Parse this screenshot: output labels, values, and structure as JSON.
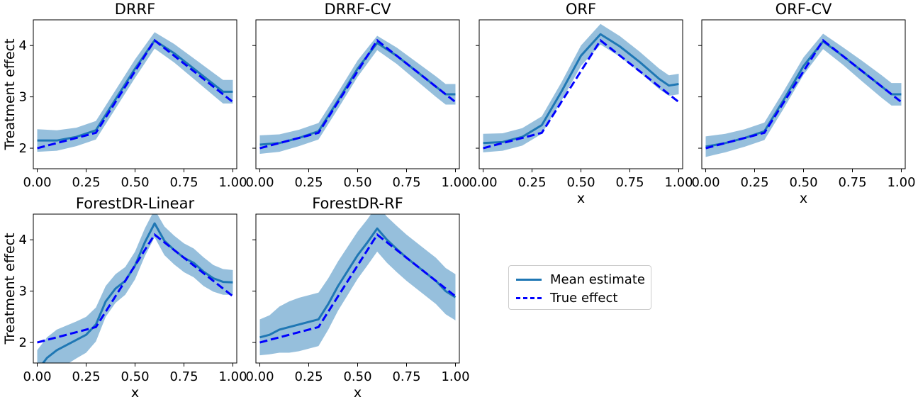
{
  "chart_data": {
    "type": "line",
    "x_ticks": [
      "0.00",
      "0.25",
      "0.50",
      "0.75",
      "1.00"
    ],
    "y_ticks": [
      "2",
      "3",
      "4"
    ],
    "xlim": [
      -0.02,
      1.02
    ],
    "ylim": [
      1.6,
      4.5
    ],
    "legend": {
      "placement": "center-right of lower row",
      "entries": [
        {
          "label": "Mean estimate",
          "style": "solid",
          "color": "#1f77b4"
        },
        {
          "label": "True effect",
          "style": "dashed",
          "color": "#0000ff"
        }
      ]
    },
    "true_effect": {
      "x": [
        0.0,
        0.3,
        0.6,
        1.0
      ],
      "y": [
        2.0,
        2.3,
        4.1,
        2.9
      ]
    },
    "panels": [
      {
        "title": "DRRF",
        "ylabel": "Treatment effect",
        "xlabel": "",
        "mean": {
          "x": [
            0.0,
            0.1,
            0.2,
            0.3,
            0.4,
            0.5,
            0.6,
            0.7,
            0.8,
            0.9,
            0.95,
            1.0
          ],
          "y": [
            2.15,
            2.15,
            2.22,
            2.35,
            2.95,
            3.55,
            4.1,
            3.85,
            3.55,
            3.25,
            3.1,
            3.1
          ]
        },
        "band_halfwidth": [
          0.22,
          0.2,
          0.18,
          0.18,
          0.18,
          0.18,
          0.16,
          0.18,
          0.2,
          0.22,
          0.23,
          0.23
        ]
      },
      {
        "title": "DRRF-CV",
        "ylabel": "",
        "xlabel": "",
        "mean": {
          "x": [
            0.0,
            0.1,
            0.2,
            0.3,
            0.4,
            0.5,
            0.6,
            0.7,
            0.8,
            0.9,
            0.95,
            1.0
          ],
          "y": [
            2.07,
            2.1,
            2.2,
            2.33,
            2.93,
            3.55,
            4.05,
            3.8,
            3.5,
            3.2,
            3.05,
            3.05
          ]
        },
        "band_halfwidth": [
          0.18,
          0.17,
          0.16,
          0.16,
          0.16,
          0.16,
          0.14,
          0.16,
          0.18,
          0.2,
          0.2,
          0.2
        ]
      },
      {
        "title": "ORF",
        "ylabel": "",
        "xlabel": "x",
        "mean": {
          "x": [
            0.0,
            0.1,
            0.2,
            0.3,
            0.4,
            0.5,
            0.6,
            0.7,
            0.8,
            0.9,
            0.95,
            1.0
          ],
          "y": [
            2.1,
            2.12,
            2.22,
            2.45,
            3.1,
            3.8,
            4.22,
            3.98,
            3.68,
            3.35,
            3.22,
            3.25
          ]
        },
        "band_halfwidth": [
          0.18,
          0.17,
          0.17,
          0.17,
          0.18,
          0.2,
          0.2,
          0.2,
          0.2,
          0.2,
          0.2,
          0.2
        ]
      },
      {
        "title": "ORF-CV",
        "ylabel": "",
        "xlabel": "x",
        "mean": {
          "x": [
            0.0,
            0.1,
            0.2,
            0.3,
            0.4,
            0.5,
            0.6,
            0.7,
            0.8,
            0.9,
            0.95,
            1.0
          ],
          "y": [
            2.03,
            2.1,
            2.2,
            2.33,
            2.95,
            3.6,
            4.08,
            3.8,
            3.5,
            3.2,
            3.05,
            3.05
          ]
        },
        "band_halfwidth": [
          0.2,
          0.18,
          0.17,
          0.17,
          0.17,
          0.17,
          0.15,
          0.17,
          0.2,
          0.22,
          0.22,
          0.22
        ]
      },
      {
        "title": "ForestDR-Linear",
        "ylabel": "Treatment effect",
        "xlabel": "x",
        "mean": {
          "x": [
            0.0,
            0.05,
            0.1,
            0.15,
            0.2,
            0.25,
            0.3,
            0.35,
            0.4,
            0.45,
            0.5,
            0.55,
            0.6,
            0.65,
            0.7,
            0.75,
            0.8,
            0.85,
            0.9,
            0.95,
            1.0
          ],
          "y": [
            1.45,
            1.7,
            1.85,
            1.95,
            2.05,
            2.15,
            2.35,
            2.8,
            3.05,
            3.2,
            3.5,
            3.95,
            4.32,
            3.98,
            3.8,
            3.65,
            3.55,
            3.38,
            3.25,
            3.18,
            3.17
          ]
        },
        "band_halfwidth": [
          0.4,
          0.4,
          0.4,
          0.38,
          0.36,
          0.35,
          0.33,
          0.3,
          0.28,
          0.27,
          0.27,
          0.27,
          0.27,
          0.28,
          0.28,
          0.28,
          0.28,
          0.28,
          0.26,
          0.25,
          0.24
        ]
      },
      {
        "title": "ForestDR-RF",
        "ylabel": "",
        "xlabel": "x",
        "mean": {
          "x": [
            0.0,
            0.05,
            0.1,
            0.15,
            0.2,
            0.25,
            0.3,
            0.35,
            0.4,
            0.45,
            0.5,
            0.55,
            0.6,
            0.65,
            0.7,
            0.75,
            0.8,
            0.85,
            0.9,
            0.95,
            1.0
          ],
          "y": [
            2.1,
            2.15,
            2.25,
            2.3,
            2.35,
            2.4,
            2.45,
            2.75,
            3.1,
            3.4,
            3.7,
            3.95,
            4.22,
            4.0,
            3.82,
            3.65,
            3.5,
            3.35,
            3.2,
            3.0,
            2.88
          ]
        },
        "band_halfwidth": [
          0.35,
          0.38,
          0.45,
          0.5,
          0.52,
          0.52,
          0.52,
          0.5,
          0.48,
          0.47,
          0.46,
          0.45,
          0.45,
          0.45,
          0.45,
          0.45,
          0.45,
          0.45,
          0.45,
          0.45,
          0.45
        ]
      }
    ]
  }
}
